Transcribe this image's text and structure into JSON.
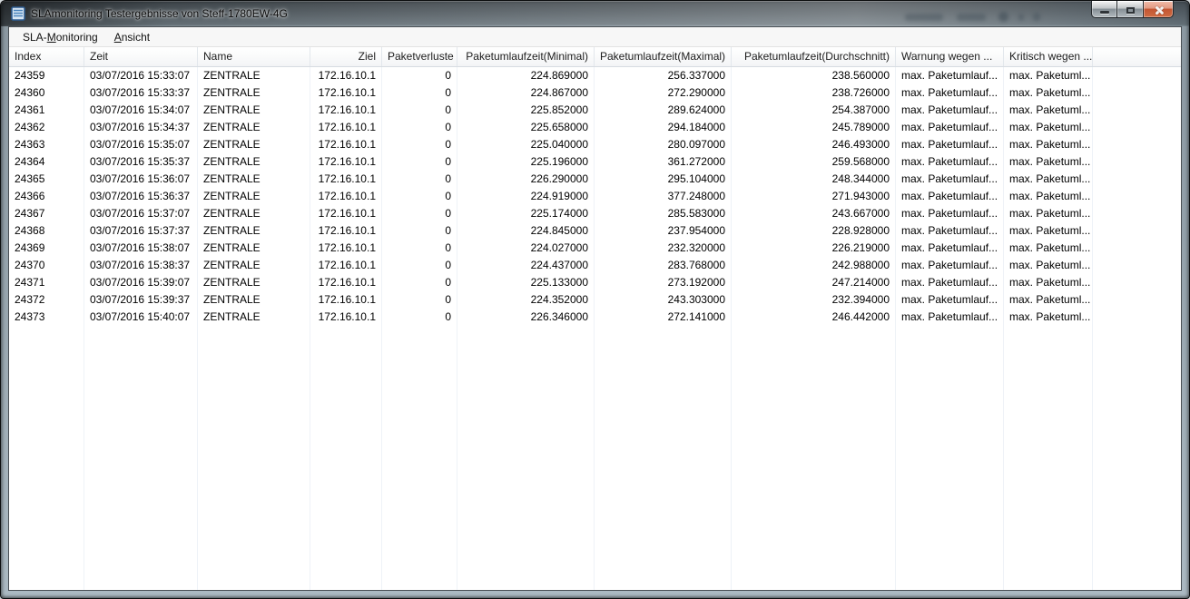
{
  "window": {
    "title": "SLAmonitoring Testergebnisse von Steff-1780EW-4G",
    "icon": "details-list-icon",
    "controls": {
      "minimize": "minimize-icon",
      "maximize": "maximize-icon",
      "close": "close-icon"
    }
  },
  "colors": {
    "close_button_red": "#c35532",
    "grid_line": "#eef2f7",
    "header_border": "#d7dce1"
  },
  "menu": {
    "items": [
      {
        "id": "sla-monitoring",
        "label": "SLA-Monitoring",
        "pre": "SLA-",
        "key": "M",
        "post": "onitoring"
      },
      {
        "id": "ansicht",
        "label": "Ansicht",
        "pre": "",
        "key": "A",
        "post": "nsicht"
      }
    ]
  },
  "table": {
    "columns": [
      {
        "id": "index",
        "label": "Index",
        "width": 83,
        "align": "left"
      },
      {
        "id": "zeit",
        "label": "Zeit",
        "width": 125,
        "align": "left"
      },
      {
        "id": "name",
        "label": "Name",
        "width": 124,
        "align": "left"
      },
      {
        "id": "ziel",
        "label": "Ziel",
        "width": 79,
        "align": "right"
      },
      {
        "id": "paketverluste",
        "label": "Paketverluste",
        "width": 83,
        "align": "right"
      },
      {
        "id": "rtt-min",
        "label": "Paketumlaufzeit(Minimal)",
        "width": 151,
        "align": "right"
      },
      {
        "id": "rtt-max",
        "label": "Paketumlaufzeit(Maximal)",
        "width": 151,
        "align": "right"
      },
      {
        "id": "rtt-avg",
        "label": "Paketumlaufzeit(Durchschnitt)",
        "width": 181,
        "align": "right"
      },
      {
        "id": "warnung",
        "label": "Warnung wegen ...",
        "width": 119,
        "align": "left"
      },
      {
        "id": "kritisch",
        "label": "Kritisch wegen ...",
        "width": 98,
        "align": "left"
      }
    ],
    "rows": [
      [
        "24359",
        "03/07/2016 15:33:07",
        "ZENTRALE",
        "172.16.10.1",
        "0",
        "224.869000",
        "256.337000",
        "238.560000",
        "max. Paketumlauf...",
        "max. Paketuml..."
      ],
      [
        "24360",
        "03/07/2016 15:33:37",
        "ZENTRALE",
        "172.16.10.1",
        "0",
        "224.867000",
        "272.290000",
        "238.726000",
        "max. Paketumlauf...",
        "max. Paketuml..."
      ],
      [
        "24361",
        "03/07/2016 15:34:07",
        "ZENTRALE",
        "172.16.10.1",
        "0",
        "225.852000",
        "289.624000",
        "254.387000",
        "max. Paketumlauf...",
        "max. Paketuml..."
      ],
      [
        "24362",
        "03/07/2016 15:34:37",
        "ZENTRALE",
        "172.16.10.1",
        "0",
        "225.658000",
        "294.184000",
        "245.789000",
        "max. Paketumlauf...",
        "max. Paketuml..."
      ],
      [
        "24363",
        "03/07/2016 15:35:07",
        "ZENTRALE",
        "172.16.10.1",
        "0",
        "225.040000",
        "280.097000",
        "246.493000",
        "max. Paketumlauf...",
        "max. Paketuml..."
      ],
      [
        "24364",
        "03/07/2016 15:35:37",
        "ZENTRALE",
        "172.16.10.1",
        "0",
        "225.196000",
        "361.272000",
        "259.568000",
        "max. Paketumlauf...",
        "max. Paketuml..."
      ],
      [
        "24365",
        "03/07/2016 15:36:07",
        "ZENTRALE",
        "172.16.10.1",
        "0",
        "226.290000",
        "295.104000",
        "248.344000",
        "max. Paketumlauf...",
        "max. Paketuml..."
      ],
      [
        "24366",
        "03/07/2016 15:36:37",
        "ZENTRALE",
        "172.16.10.1",
        "0",
        "224.919000",
        "377.248000",
        "271.943000",
        "max. Paketumlauf...",
        "max. Paketuml..."
      ],
      [
        "24367",
        "03/07/2016 15:37:07",
        "ZENTRALE",
        "172.16.10.1",
        "0",
        "225.174000",
        "285.583000",
        "243.667000",
        "max. Paketumlauf...",
        "max. Paketuml..."
      ],
      [
        "24368",
        "03/07/2016 15:37:37",
        "ZENTRALE",
        "172.16.10.1",
        "0",
        "224.845000",
        "237.954000",
        "228.928000",
        "max. Paketumlauf...",
        "max. Paketuml..."
      ],
      [
        "24369",
        "03/07/2016 15:38:07",
        "ZENTRALE",
        "172.16.10.1",
        "0",
        "224.027000",
        "232.320000",
        "226.219000",
        "max. Paketumlauf...",
        "max. Paketuml..."
      ],
      [
        "24370",
        "03/07/2016 15:38:37",
        "ZENTRALE",
        "172.16.10.1",
        "0",
        "224.437000",
        "283.768000",
        "242.988000",
        "max. Paketumlauf...",
        "max. Paketuml..."
      ],
      [
        "24371",
        "03/07/2016 15:39:07",
        "ZENTRALE",
        "172.16.10.1",
        "0",
        "225.133000",
        "273.192000",
        "247.214000",
        "max. Paketumlauf...",
        "max. Paketuml..."
      ],
      [
        "24372",
        "03/07/2016 15:39:37",
        "ZENTRALE",
        "172.16.10.1",
        "0",
        "224.352000",
        "243.303000",
        "232.394000",
        "max. Paketumlauf...",
        "max. Paketuml..."
      ],
      [
        "24373",
        "03/07/2016 15:40:07",
        "ZENTRALE",
        "172.16.10.1",
        "0",
        "226.346000",
        "272.141000",
        "246.442000",
        "max. Paketumlauf...",
        "max. Paketuml..."
      ]
    ]
  }
}
